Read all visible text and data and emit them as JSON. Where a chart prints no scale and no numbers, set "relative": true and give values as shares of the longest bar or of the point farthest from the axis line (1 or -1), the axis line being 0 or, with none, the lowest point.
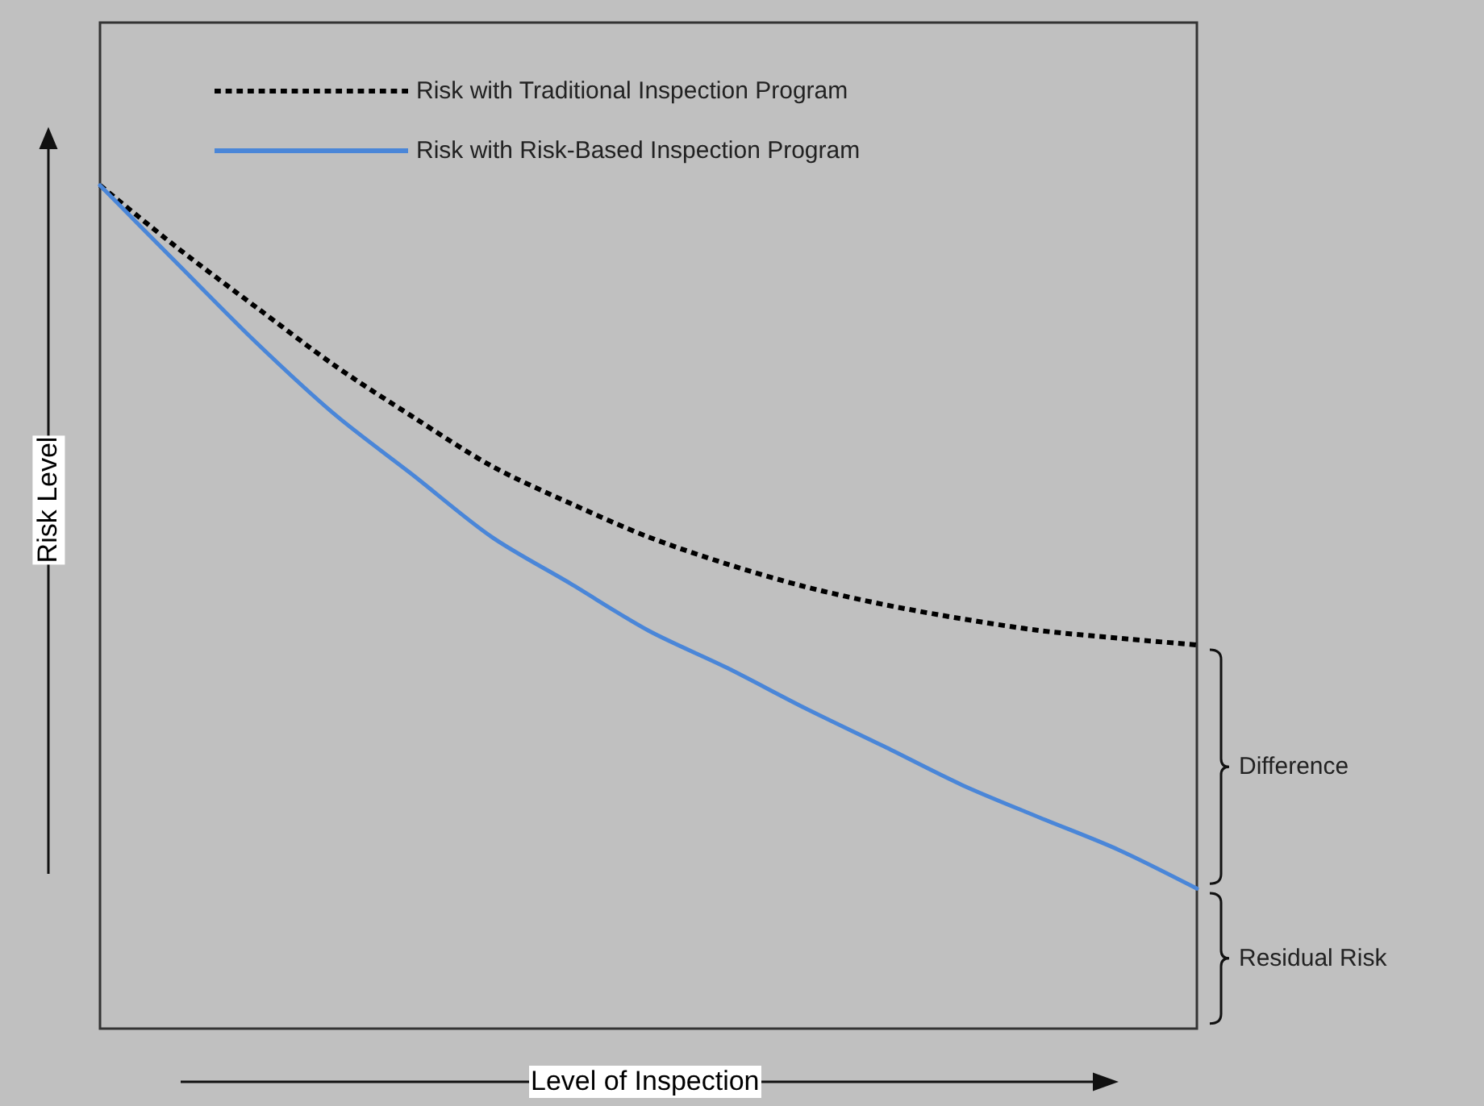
{
  "chart_data": {
    "type": "line",
    "relative": true,
    "xlabel": "Level of Inspection",
    "ylabel": "Risk Level",
    "categories": [
      null,
      null,
      null,
      null,
      null,
      null,
      null,
      null,
      null,
      null,
      null,
      null,
      null,
      null,
      null
    ],
    "series": [
      {
        "name": "Risk with Traditional Inspection Program",
        "color": "#000000",
        "line_style": "dotted",
        "values": [
          1,
          0.925,
          0.855,
          0.786,
          0.725,
          0.667,
          0.623,
          0.583,
          0.551,
          0.524,
          0.503,
          0.486,
          0.472,
          0.463,
          0.455
        ]
      },
      {
        "name": "Risk with Risk-Based Inspection Program",
        "color": "#4a86d8",
        "line_style": "solid",
        "values": [
          1,
          0.906,
          0.813,
          0.728,
          0.656,
          0.583,
          0.528,
          0.472,
          0.428,
          0.38,
          0.335,
          0.289,
          0.25,
          0.212,
          0.166
        ]
      }
    ],
    "annotations": [
      "Difference",
      "Residual Risk"
    ],
    "legend": "top left",
    "grid": false,
    "marker": "none"
  }
}
